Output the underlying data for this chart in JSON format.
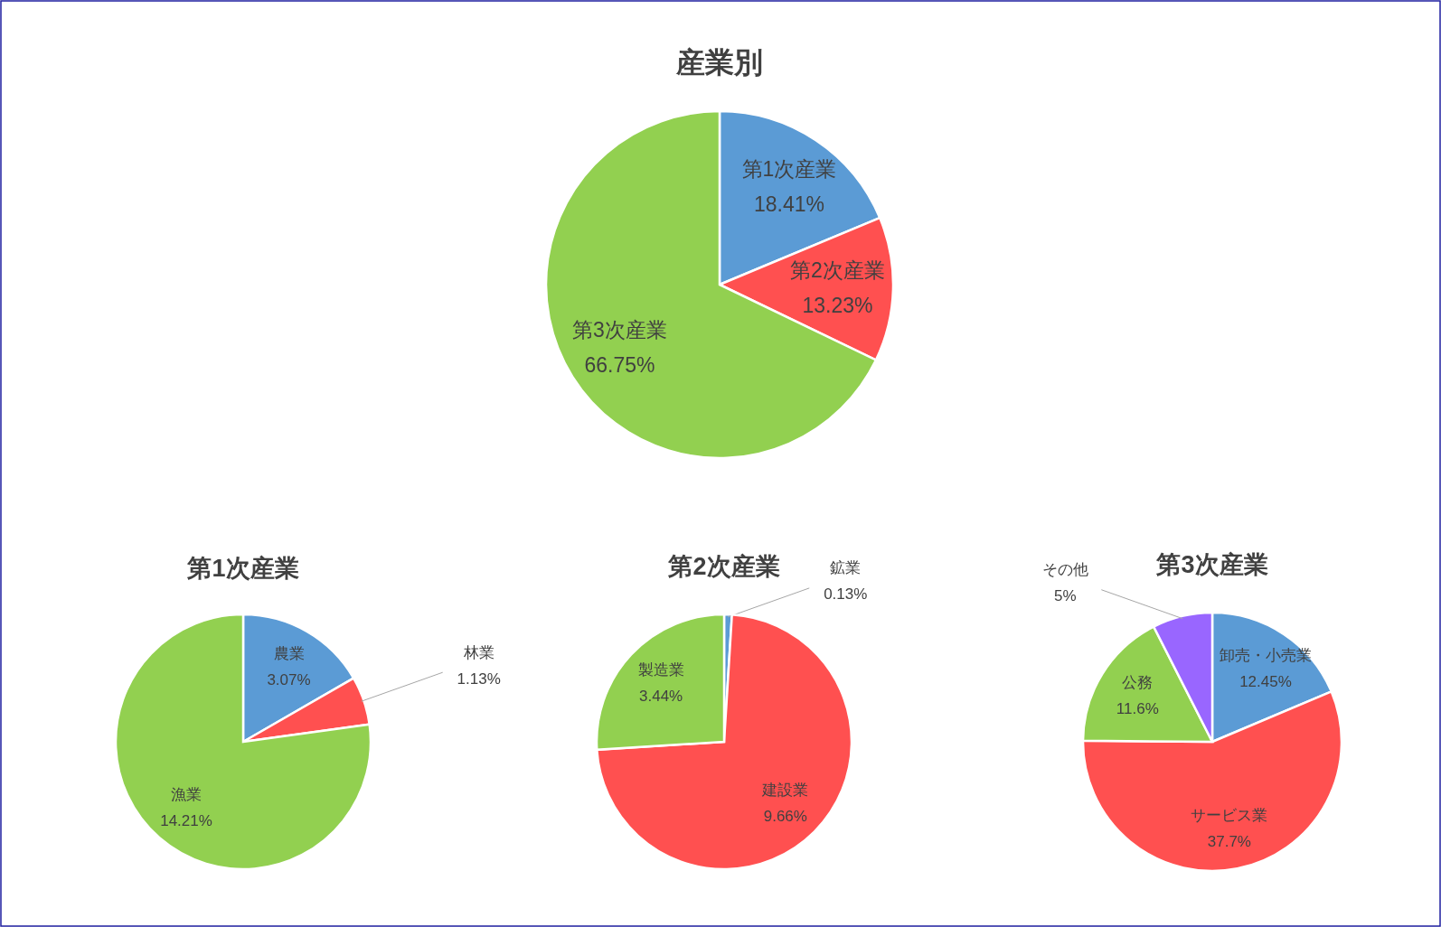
{
  "chart_data": [
    {
      "type": "pie",
      "title": "産業別",
      "categories": [
        "第1次産業",
        "第2次産業",
        "第3次産業"
      ],
      "values": [
        18.41,
        13.23,
        66.75
      ],
      "value_labels": [
        "18.41%",
        "13.23%",
        "66.75%"
      ],
      "colors": [
        "#5b9bd5",
        "#ff5050",
        "#92d050"
      ]
    },
    {
      "type": "pie",
      "title": "第1次産業",
      "categories": [
        "農業",
        "林業",
        "漁業"
      ],
      "values": [
        3.07,
        1.13,
        14.21
      ],
      "value_labels": [
        "3.07%",
        "1.13%",
        "14.21%"
      ],
      "colors": [
        "#5b9bd5",
        "#ff5050",
        "#92d050"
      ]
    },
    {
      "type": "pie",
      "title": "第2次産業",
      "categories": [
        "鉱業",
        "建設業",
        "製造業"
      ],
      "values": [
        0.13,
        9.66,
        3.44
      ],
      "value_labels": [
        "0.13%",
        "9.66%",
        "3.44%"
      ],
      "colors": [
        "#5b9bd5",
        "#ff5050",
        "#92d050"
      ]
    },
    {
      "type": "pie",
      "title": "第3次産業",
      "categories": [
        "卸売・小売業",
        "サービス業",
        "公務",
        "その他"
      ],
      "values": [
        12.45,
        37.7,
        11.6,
        5
      ],
      "value_labels": [
        "12.45%",
        "37.7%",
        "11.6%",
        "5%"
      ],
      "colors": [
        "#5b9bd5",
        "#ff5050",
        "#92d050",
        "#9966ff"
      ]
    }
  ]
}
